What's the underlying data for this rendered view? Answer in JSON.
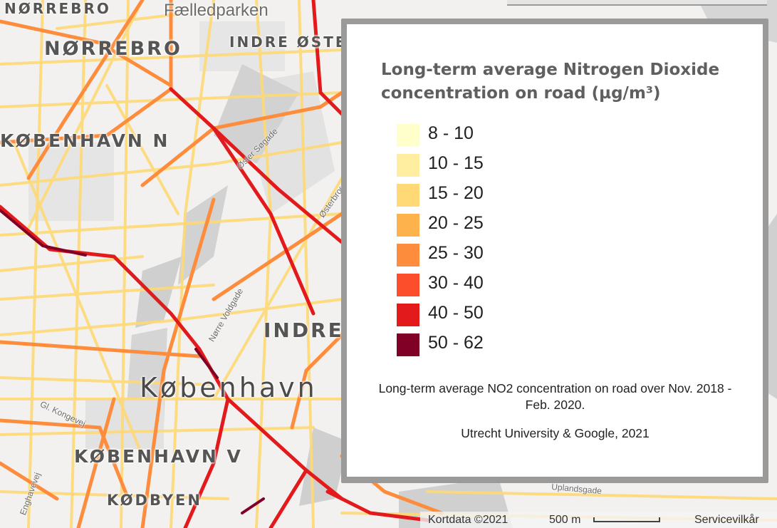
{
  "map_labels": {
    "norrebro_small": "NØRREBRO",
    "faelledparken": "Fælledparken",
    "norrebro": "NØRREBRO",
    "indre_osterbro": "INDRE ØSTERBRO",
    "kobenhavn_n": "KØBENHAVN N",
    "indre_by": "INDRE BY",
    "kobenhavn": "København",
    "kobenhavn_v": "KØBENHAVN V",
    "kodbyen": "KØDBYEN",
    "street_osterport": "Øster Søgade",
    "street_osterbrogade": "Østerbrogade",
    "street_norre_voldgade": "Nørre Voldgade",
    "street_gl_kongevej": "Gl. Kongevej",
    "street_uplandsgade": "Uplandsgade",
    "street_enghavevej": "Enghavevej"
  },
  "legend": {
    "title": "Long-term average Nitrogen Dioxide concentration on road (µg/m³)",
    "classes": [
      {
        "range": "8 - 10",
        "color": "#ffffcc"
      },
      {
        "range": "10 - 15",
        "color": "#ffeda0"
      },
      {
        "range": "15 - 20",
        "color": "#fed976"
      },
      {
        "range": "20 - 25",
        "color": "#feb24c"
      },
      {
        "range": "25 - 30",
        "color": "#fd8d3c"
      },
      {
        "range": "30 - 40",
        "color": "#fc4e2a"
      },
      {
        "range": "40 - 50",
        "color": "#e31a1c"
      },
      {
        "range": "50 - 62",
        "color": "#800026"
      }
    ],
    "note": "Long-term average NO2 concentration on road over Nov. 2018 - Feb. 2020.",
    "credit": "Utrecht University & Google, 2021"
  },
  "attribution": {
    "map_data": "Kortdata ©2021",
    "scale": "500 m",
    "terms": "Servicevilkår"
  }
}
